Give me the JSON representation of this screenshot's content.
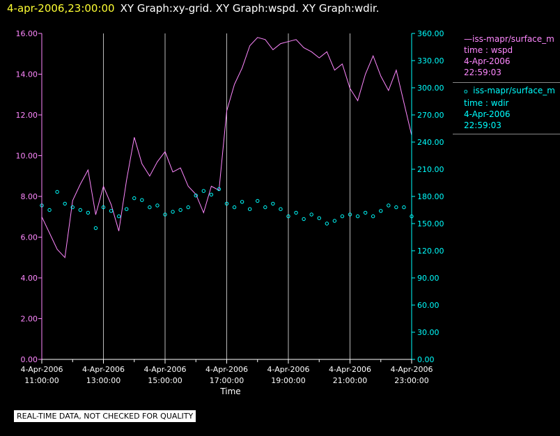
{
  "header": {
    "timestamp": "4-apr-2006,23:00:00",
    "graphs": "XY Graph:xy-grid.  XY Graph:wspd.  XY Graph:wdir."
  },
  "legend": {
    "wspd": {
      "source": "iss-mapr/surface_m",
      "var": "time : wspd",
      "date": "4-Apr-2006",
      "time": "22:59:03",
      "color": "#ff88ff"
    },
    "wdir": {
      "source": "iss-mapr/surface_m",
      "var": "time : wdir",
      "date": "4-Apr-2006",
      "time": "22:59:03",
      "color": "#00ffff"
    }
  },
  "footer": {
    "disclaimer": "REAL-TIME DATA, NOT CHECKED FOR QUALITY"
  },
  "chart_data": {
    "type": "line",
    "xlabel": "Time",
    "x_ticks": [
      {
        "hour": 11,
        "date": "4-Apr-2006",
        "time": "11:00:00"
      },
      {
        "hour": 13,
        "date": "4-Apr-2006",
        "time": "13:00:00"
      },
      {
        "hour": 15,
        "date": "4-Apr-2006",
        "time": "15:00:00"
      },
      {
        "hour": 17,
        "date": "4-Apr-2006",
        "time": "17:00:00"
      },
      {
        "hour": 19,
        "date": "4-Apr-2006",
        "time": "19:00:00"
      },
      {
        "hour": 21,
        "date": "4-Apr-2006",
        "time": "21:00:00"
      },
      {
        "hour": 23,
        "date": "4-Apr-2006",
        "time": "23:00:00"
      }
    ],
    "xlim_hours": [
      11,
      23
    ],
    "y_left": {
      "ylim": [
        0,
        16
      ],
      "ticks": [
        "0.00",
        "2.00",
        "4.00",
        "6.00",
        "8.00",
        "10.00",
        "12.00",
        "14.00",
        "16.00"
      ],
      "color": "#ff88ff"
    },
    "y_right": {
      "ylim": [
        0,
        360
      ],
      "ticks": [
        "0.00",
        "30.00",
        "60.00",
        "90.00",
        "120.00",
        "150.00",
        "180.00",
        "210.00",
        "240.00",
        "270.00",
        "300.00",
        "330.00",
        "360.00"
      ],
      "color": "#00ffff"
    },
    "series": [
      {
        "name": "iss-mapr/surface_m time : wspd",
        "axis": "left",
        "style": "line",
        "color": "#ff88ff",
        "x": [
          11.0,
          11.25,
          11.5,
          11.75,
          12.0,
          12.25,
          12.5,
          12.75,
          13.0,
          13.25,
          13.5,
          13.75,
          14.0,
          14.25,
          14.5,
          14.75,
          15.0,
          15.25,
          15.5,
          15.75,
          16.0,
          16.25,
          16.5,
          16.75,
          17.0,
          17.25,
          17.5,
          17.75,
          18.0,
          18.25,
          18.5,
          18.75,
          19.0,
          19.25,
          19.5,
          19.75,
          20.0,
          20.25,
          20.5,
          20.75,
          21.0,
          21.25,
          21.5,
          21.75,
          22.0,
          22.25,
          22.5,
          22.75,
          23.0
        ],
        "y": [
          7.0,
          6.2,
          5.4,
          5.0,
          7.8,
          8.6,
          9.3,
          7.1,
          8.5,
          7.6,
          6.3,
          8.8,
          10.9,
          9.6,
          9.0,
          9.7,
          10.2,
          9.2,
          9.4,
          8.5,
          8.1,
          7.2,
          8.5,
          8.3,
          12.2,
          13.5,
          14.3,
          15.4,
          15.8,
          15.7,
          15.2,
          15.5,
          15.6,
          15.7,
          15.3,
          15.1,
          14.8,
          15.1,
          14.2,
          14.5,
          13.3,
          12.7,
          14.0,
          14.9,
          13.9,
          13.2,
          14.2,
          12.6,
          11.0
        ]
      },
      {
        "name": "iss-mapr/surface_m time : wdir",
        "axis": "right",
        "style": "points",
        "color": "#00ffff",
        "x": [
          11.0,
          11.25,
          11.5,
          11.75,
          12.0,
          12.25,
          12.5,
          12.75,
          13.0,
          13.25,
          13.5,
          13.75,
          14.0,
          14.25,
          14.5,
          14.75,
          15.0,
          15.25,
          15.5,
          15.75,
          16.0,
          16.25,
          16.5,
          16.75,
          17.0,
          17.25,
          17.5,
          17.75,
          18.0,
          18.25,
          18.5,
          18.75,
          19.0,
          19.25,
          19.5,
          19.75,
          20.0,
          20.25,
          20.5,
          20.75,
          21.0,
          21.25,
          21.5,
          21.75,
          22.0,
          22.25,
          22.5,
          22.75,
          23.0
        ],
        "y": [
          170,
          165,
          185,
          172,
          168,
          165,
          162,
          145,
          168,
          164,
          158,
          166,
          178,
          176,
          168,
          170,
          160,
          163,
          165,
          168,
          181,
          186,
          182,
          188,
          172,
          168,
          174,
          166,
          175,
          168,
          172,
          166,
          158,
          162,
          155,
          160,
          156,
          150,
          153,
          158,
          160,
          158,
          162,
          158,
          164,
          170,
          168,
          168,
          158
        ]
      }
    ]
  }
}
